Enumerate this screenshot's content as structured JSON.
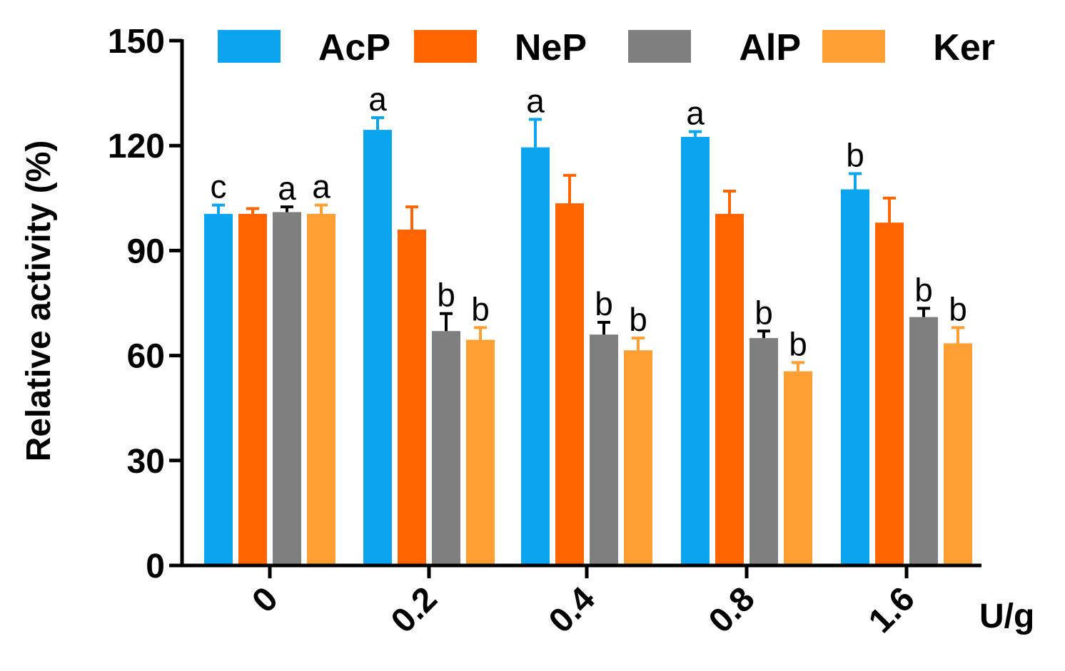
{
  "chart_data": {
    "type": "bar",
    "title": "",
    "xlabel": "U/g",
    "ylabel": "Relative activity (%)",
    "ylim": [
      0,
      150
    ],
    "yticks": [
      0,
      30,
      60,
      90,
      120,
      150
    ],
    "categories": [
      "0",
      "0.2",
      "0.4",
      "0.8",
      "1.6"
    ],
    "legend_position": "top",
    "series": [
      {
        "name": "AcP",
        "color": "#0aa4ef",
        "values": [
          100.5,
          124.5,
          119.5,
          122.5,
          107.5
        ],
        "errors": [
          2.5,
          3.5,
          8,
          1.5,
          4.5
        ],
        "labels": [
          "c",
          "a",
          "a",
          "a",
          "b"
        ]
      },
      {
        "name": "NeP",
        "color": "#ff6400",
        "values": [
          100.5,
          96,
          103.5,
          100.5,
          98
        ],
        "errors": [
          1.5,
          6.5,
          8,
          6.5,
          7
        ],
        "labels": [
          "",
          "",
          "",
          "",
          ""
        ]
      },
      {
        "name": "AlP",
        "color": "#7f7f7f",
        "values": [
          101,
          67,
          66,
          65,
          71
        ],
        "errors": [
          1.5,
          5,
          3.5,
          2,
          2.5
        ],
        "labels": [
          "a",
          "b",
          "b",
          "b",
          "b"
        ]
      },
      {
        "name": "Ker",
        "color": "#ff9e33",
        "values": [
          100.5,
          64.5,
          61.5,
          55.5,
          63.5
        ],
        "errors": [
          2.5,
          3.5,
          3.5,
          2.5,
          4.5
        ],
        "labels": [
          "a",
          "b",
          "b",
          "b",
          "b"
        ]
      }
    ]
  }
}
